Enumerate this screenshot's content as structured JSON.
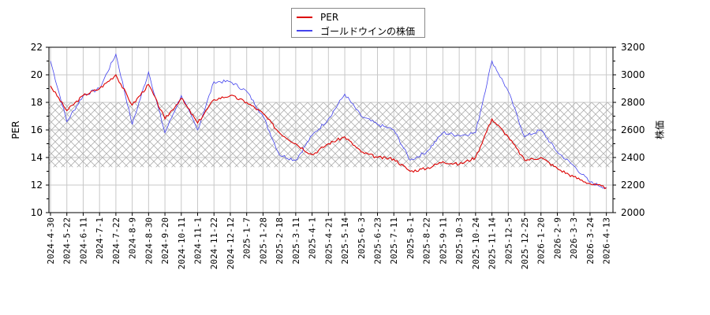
{
  "legend": {
    "items": [
      {
        "label": "PER",
        "color": "#dd0000"
      },
      {
        "label": "ゴールドウインの株価",
        "color": "#4444ee"
      }
    ]
  },
  "axes": {
    "left_title": "PER",
    "right_title": "株価",
    "left_ticks": [
      "22",
      "20",
      "18",
      "16",
      "14",
      "12",
      "10"
    ],
    "right_ticks": [
      "3200",
      "3000",
      "2800",
      "2600",
      "2400",
      "2200",
      "2000"
    ],
    "x_ticks": [
      "2024-4-30",
      "2024-5-22",
      "2024-6-11",
      "2024-7-1",
      "2024-7-22",
      "2024-8-9",
      "2024-8-30",
      "2024-9-20",
      "2024-10-11",
      "2024-11-1",
      "2024-11-22",
      "2024-12-12",
      "2025-1-7",
      "2025-1-28",
      "2025-2-18",
      "2025-3-11",
      "2025-4-1",
      "2025-4-21",
      "2025-5-14",
      "2025-6-3",
      "2025-6-23",
      "2025-7-11",
      "2025-8-1",
      "2025-8-22",
      "2025-9-11",
      "2025-10-3",
      "2025-10-24",
      "2025-11-14",
      "2025-12-5",
      "2025-12-25",
      "2026-1-20",
      "2026-2-9",
      "2026-3-3",
      "2026-3-24",
      "2026-4-13"
    ]
  },
  "chart_data": {
    "type": "line",
    "title": "",
    "xlabel": "",
    "ylabel": "PER",
    "ylabel_right": "株価",
    "ylim": [
      10,
      22
    ],
    "ylim_right": [
      2000,
      3200
    ],
    "grid": true,
    "legend_position": "top-center",
    "shaded_band": {
      "axis": "left",
      "from": 13.3,
      "to": 18.0,
      "pattern": "crosshatch"
    },
    "categories": [
      "2024-4-30",
      "2024-5-22",
      "2024-6-11",
      "2024-7-1",
      "2024-7-22",
      "2024-8-9",
      "2024-8-30",
      "2024-9-20",
      "2024-10-11",
      "2024-11-1",
      "2024-11-22",
      "2024-12-12",
      "2025-1-7",
      "2025-1-28",
      "2025-2-18",
      "2025-3-11",
      "2025-4-1",
      "2025-4-21",
      "2025-5-14",
      "2025-6-3",
      "2025-6-23",
      "2025-7-11",
      "2025-8-1",
      "2025-8-22",
      "2025-9-11",
      "2025-10-3",
      "2025-10-24",
      "2025-11-14",
      "2025-12-5",
      "2025-12-25",
      "2026-1-20",
      "2026-2-9",
      "2026-3-3",
      "2026-3-24",
      "2026-4-13"
    ],
    "series": [
      {
        "name": "PER",
        "axis": "left",
        "color": "#dd0000",
        "values": [
          19.2,
          17.4,
          18.5,
          19.0,
          20.0,
          17.8,
          19.3,
          16.8,
          18.3,
          16.5,
          18.2,
          18.5,
          18.0,
          17.2,
          15.8,
          15.0,
          14.2,
          15.0,
          15.5,
          14.4,
          14.0,
          13.9,
          13.0,
          13.2,
          13.7,
          13.5,
          14.0,
          16.8,
          15.5,
          13.8,
          14.0,
          13.2,
          12.6,
          12.1,
          11.8
        ]
      },
      {
        "name": "ゴールドウインの株価",
        "axis": "right",
        "color": "#4444ee",
        "values": [
          3100,
          2660,
          2850,
          2900,
          3150,
          2640,
          3020,
          2580,
          2850,
          2600,
          2950,
          2950,
          2880,
          2700,
          2420,
          2380,
          2560,
          2680,
          2860,
          2700,
          2640,
          2600,
          2380,
          2440,
          2580,
          2560,
          2580,
          3100,
          2880,
          2550,
          2600,
          2440,
          2340,
          2220,
          2180
        ]
      }
    ]
  }
}
